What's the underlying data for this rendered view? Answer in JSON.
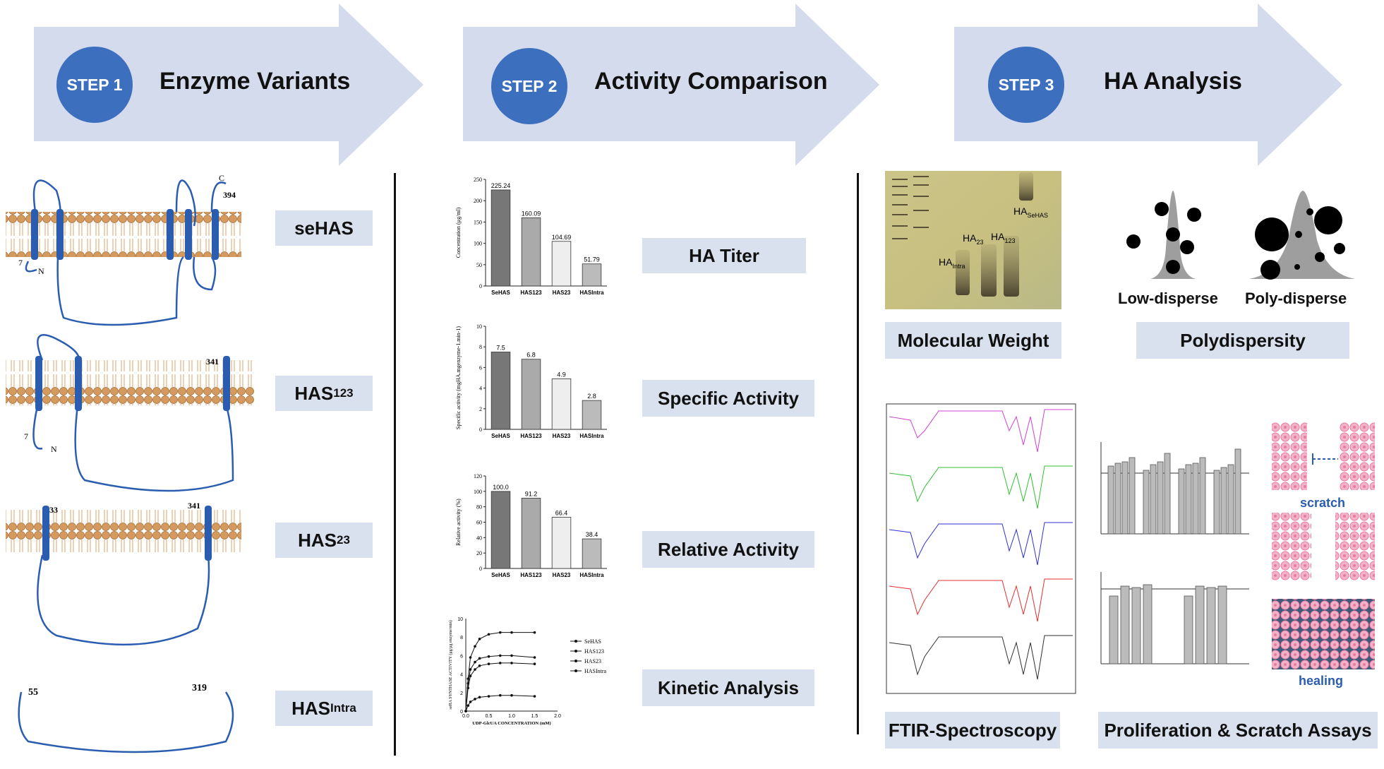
{
  "steps": [
    {
      "badge": "STEP 1",
      "title": "Enzyme Variants"
    },
    {
      "badge": "STEP 2",
      "title": "Activity Comparison"
    },
    {
      "badge": "STEP 3",
      "title": "HA Analysis"
    }
  ],
  "variants": [
    {
      "name": "seHAS",
      "base": "seHAS",
      "sub": "",
      "start": "7",
      "end": "394",
      "n": "N",
      "c": "C"
    },
    {
      "name": "HAS123",
      "base": "HAS",
      "sub": "123",
      "start": "7",
      "end": "341",
      "n": "N",
      "c": ""
    },
    {
      "name": "HAS23",
      "base": "HAS",
      "sub": "23",
      "start": "33",
      "end": "341",
      "n": "",
      "c": ""
    },
    {
      "name": "HASIntra",
      "base": "HAS",
      "sub": "Intra",
      "start": "55",
      "end": "319",
      "n": "",
      "c": ""
    }
  ],
  "step2_labels": [
    "HA Titer",
    "Specific Activity",
    "Relative Activity",
    "Kinetic Analysis"
  ],
  "step3_labels": {
    "molecular_weight": "Molecular Weight",
    "polydispersity": "Polydispersity",
    "ftir": "FTIR-Spectroscopy",
    "assays": "Proliferation & Scratch Assays",
    "low_disperse": "Low-disperse",
    "poly_disperse": "Poly-disperse",
    "scratch": "scratch",
    "healing": "healing"
  },
  "gel_labels": [
    {
      "base": "HA",
      "sub": "SeHAS"
    },
    {
      "base": "HA",
      "sub": "23"
    },
    {
      "base": "HA",
      "sub": "123"
    },
    {
      "base": "HA",
      "sub": "Intra"
    }
  ],
  "chart_data": [
    {
      "type": "bar",
      "ylabel": "Concentration (μg/ml)",
      "categories": [
        "SeHAS",
        "HAS123",
        "HAS23",
        "HASIntra"
      ],
      "values": [
        225.24,
        160.09,
        104.69,
        51.79
      ],
      "value_labels": [
        "225.24",
        "160.09",
        "104.69",
        "51.79"
      ],
      "ylim": [
        0,
        250
      ],
      "yticks": [
        "0",
        "50",
        "100",
        "150",
        "200",
        "250"
      ]
    },
    {
      "type": "bar",
      "ylabel": "Specific activity (mgHA.mgenzyme-1.min-1)",
      "categories": [
        "SeHAS",
        "HAS123",
        "HAS23",
        "HASIntra"
      ],
      "values": [
        7.5,
        6.8,
        4.9,
        2.8
      ],
      "value_labels": [
        "7.5",
        "6.8",
        "4.9",
        "2.8"
      ],
      "ylim": [
        0,
        10
      ],
      "yticks": [
        "0",
        "2",
        "4",
        "6",
        "8",
        "10"
      ]
    },
    {
      "type": "bar",
      "ylabel": "Relative activity (%)",
      "categories": [
        "SeHAS",
        "HAS123",
        "HAS23",
        "HASIntra"
      ],
      "values": [
        100.0,
        91.2,
        66.4,
        38.4
      ],
      "value_labels": [
        "100.0",
        "91.2",
        "66.4",
        "38.4"
      ],
      "ylim": [
        0,
        120
      ],
      "yticks": [
        "0",
        "20",
        "40",
        "60",
        "80",
        "100",
        "120"
      ]
    },
    {
      "type": "line",
      "xlabel": "UDP-GlcUA CONCENTRATION (mM)",
      "ylabel": "seHA SYNTHASE ACTIVITY (μg/μg enzyme/min)",
      "xlim": [
        0,
        2.0
      ],
      "ylim": [
        0,
        10
      ],
      "xticks": [
        "0.0",
        "0.5",
        "1.0",
        "1.5",
        "2.0"
      ],
      "yticks": [
        "0",
        "2",
        "4",
        "6",
        "8",
        "10"
      ],
      "x": [
        0,
        0.05,
        0.1,
        0.2,
        0.3,
        0.5,
        0.75,
        1.0,
        1.5
      ],
      "series": [
        {
          "name": "SeHAS",
          "values": [
            0,
            3.5,
            5.8,
            7.0,
            7.8,
            8.3,
            8.5,
            8.5,
            8.5
          ]
        },
        {
          "name": "HAS123",
          "values": [
            0,
            3.0,
            4.5,
            5.3,
            5.7,
            5.9,
            6.0,
            6.0,
            5.8
          ]
        },
        {
          "name": "HAS23",
          "values": [
            0,
            2.5,
            3.8,
            4.5,
            4.9,
            5.1,
            5.2,
            5.2,
            5.1
          ]
        },
        {
          "name": "HASIntra",
          "values": [
            0,
            0.6,
            1.0,
            1.3,
            1.5,
            1.6,
            1.7,
            1.7,
            1.6
          ]
        }
      ]
    }
  ],
  "colors": {
    "arrow": "#d4dbec",
    "circle": "#3d6fbf",
    "label_box": "#dae1ee",
    "helix": "#2a5db0",
    "membrane": "#d59a5e",
    "gel_bg": "#c9c07f",
    "ftir": [
      "#d040d0",
      "#30c030",
      "#3030d0",
      "#e03030",
      "#303030"
    ],
    "cell_pink": "#e87ca0"
  }
}
